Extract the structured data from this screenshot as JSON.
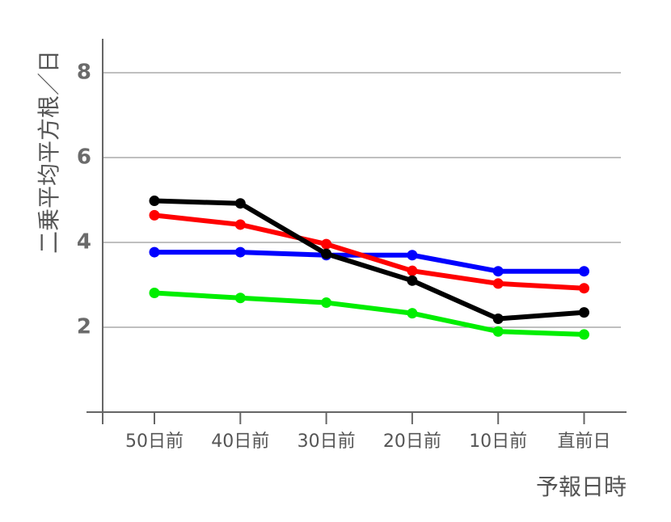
{
  "chart_data": {
    "type": "line",
    "title": "",
    "xlabel": "予報日時",
    "ylabel": "二乗平均平方根／日",
    "categories": [
      "50日前",
      "40日前",
      "30日前",
      "20日前",
      "10日前",
      "直前日"
    ],
    "y_ticks": [
      "2",
      "4",
      "6",
      "8"
    ],
    "ylim": [
      0,
      8.8
    ],
    "grid": true,
    "legend": "none",
    "series": [
      {
        "color": "#0000ff",
        "values": [
          3.77,
          3.77,
          3.7,
          3.7,
          3.32,
          3.32
        ]
      },
      {
        "color": "#00ee00",
        "values": [
          2.81,
          2.69,
          2.58,
          2.33,
          1.9,
          1.83
        ]
      },
      {
        "color": "#ff0000",
        "values": [
          4.64,
          4.42,
          3.96,
          3.33,
          3.03,
          2.92
        ]
      },
      {
        "color": "#000000",
        "values": [
          4.98,
          4.92,
          3.73,
          3.1,
          2.2,
          2.35
        ]
      }
    ]
  }
}
